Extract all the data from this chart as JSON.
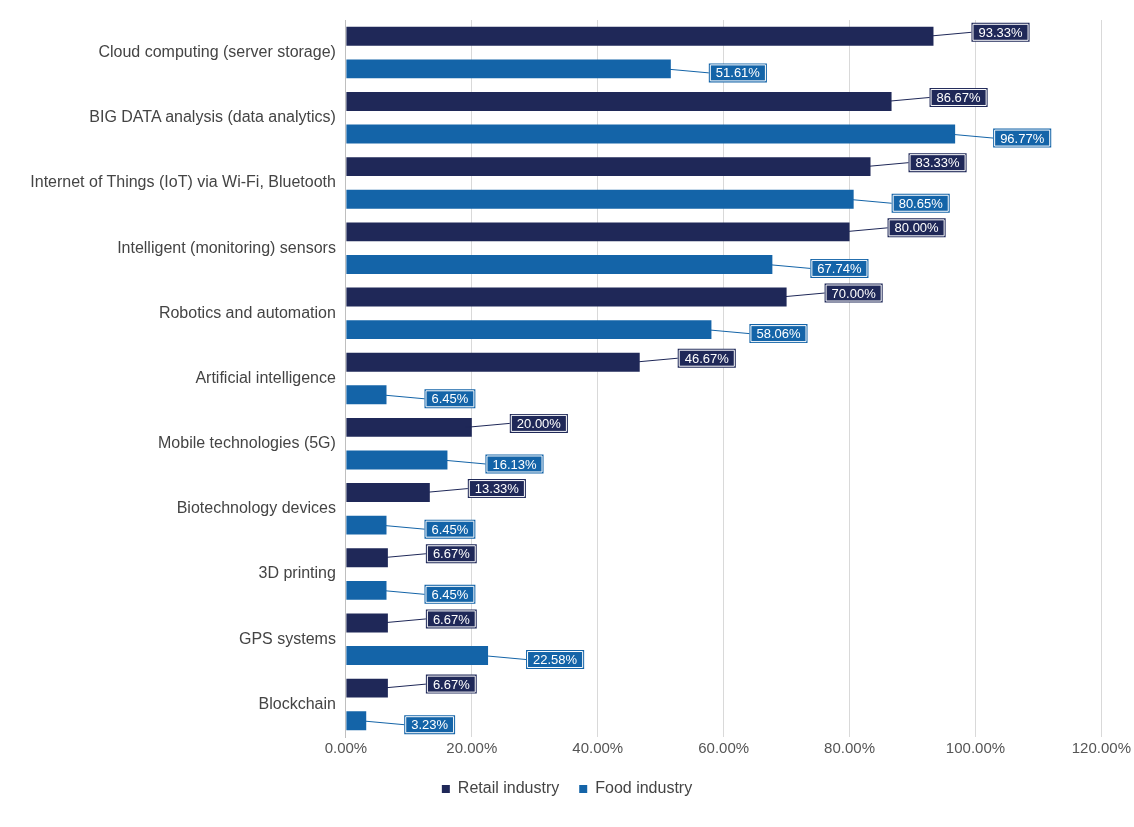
{
  "chart_data": {
    "type": "bar",
    "orientation": "horizontal",
    "categories": [
      "Cloud computing (server storage)",
      "BIG DATA analysis (data analytics)",
      "Internet of Things (IoT) via Wi-Fi, Bluetooth",
      "Intelligent (monitoring) sensors",
      "Robotics and automation",
      "Artificial intelligence",
      "Mobile technologies (5G)",
      "Biotechnology devices",
      "3D printing",
      "GPS systems",
      "Blockchain"
    ],
    "series": [
      {
        "name": "Retail industry",
        "color": "#1f2858",
        "values": [
          93.33,
          86.67,
          83.33,
          80.0,
          70.0,
          46.67,
          20.0,
          13.33,
          6.67,
          6.67,
          6.67
        ],
        "value_labels": [
          "93.33%",
          "86.67%",
          "83.33%",
          "80.00%",
          "70.00%",
          "46.67%",
          "20.00%",
          "13.33%",
          "6.67%",
          "6.67%",
          "6.67%"
        ]
      },
      {
        "name": "Food industry",
        "color": "#1464a8",
        "values": [
          51.61,
          96.77,
          80.65,
          67.74,
          58.06,
          6.45,
          16.13,
          6.45,
          6.45,
          22.58,
          3.23
        ],
        "value_labels": [
          "51.61%",
          "96.77%",
          "80.65%",
          "67.74%",
          "58.06%",
          "6.45%",
          "16.13%",
          "6.45%",
          "6.45%",
          "22.58%",
          "3.23%"
        ]
      }
    ],
    "xlim": [
      0,
      120
    ],
    "xticks": [
      {
        "value": 0,
        "label": "0.00%"
      },
      {
        "value": 20,
        "label": "20.00%"
      },
      {
        "value": 40,
        "label": "40.00%"
      },
      {
        "value": 60,
        "label": "60.00%"
      },
      {
        "value": 80,
        "label": "80.00%"
      },
      {
        "value": 100,
        "label": "100.00%"
      },
      {
        "value": 120,
        "label": "120.00%"
      }
    ],
    "grid": "x",
    "legend": "bottom"
  }
}
